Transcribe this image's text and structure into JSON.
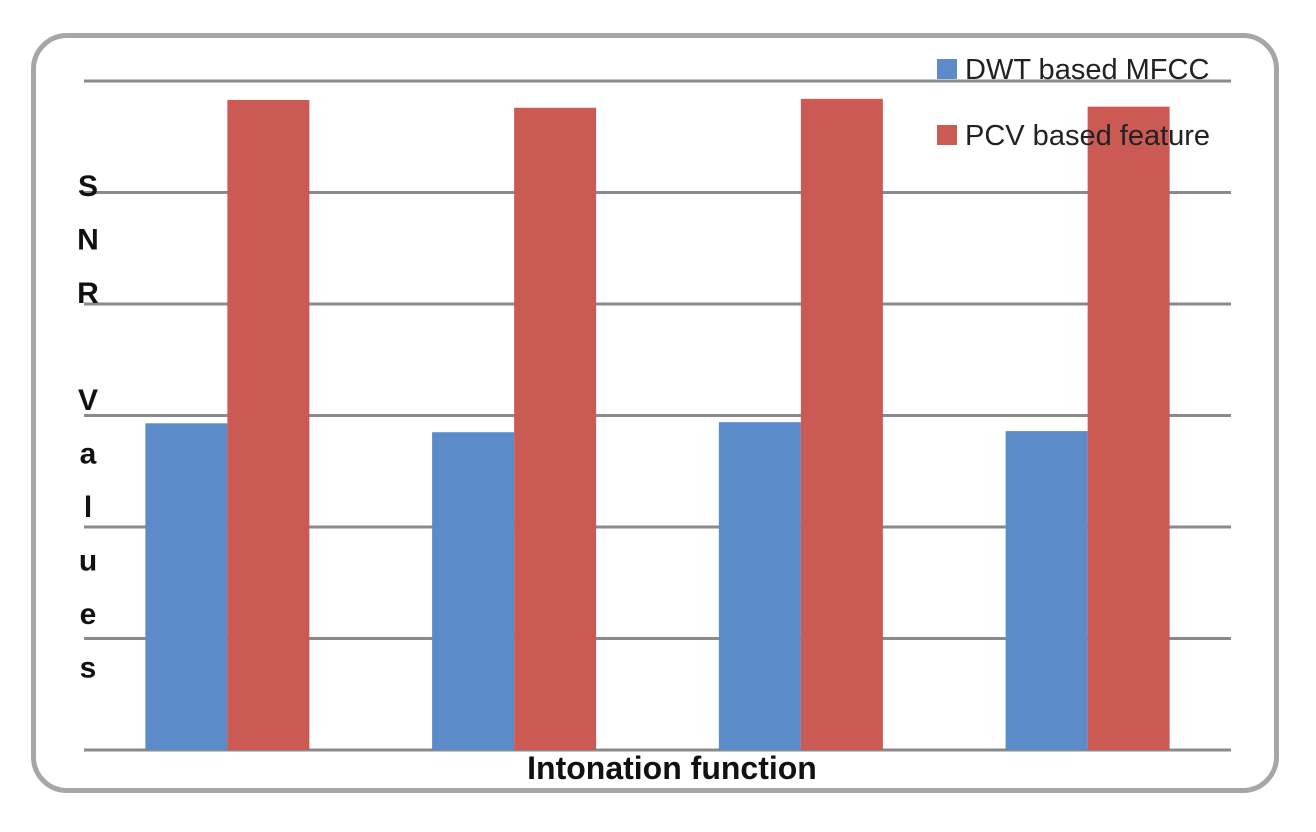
{
  "chart_data": {
    "type": "bar",
    "title": "",
    "xlabel": "Intonation function",
    "ylabel": "SNR Values",
    "ylabel_lines": [
      "S",
      "N",
      "R",
      "",
      "V",
      "a",
      "l",
      "u",
      "e",
      "s"
    ],
    "categories": [
      "",
      "",
      "",
      ""
    ],
    "series": [
      {
        "name": "DWT based MFCC",
        "color": "#5b8bc8",
        "values": [
          2.93,
          2.85,
          2.94,
          2.86
        ]
      },
      {
        "name": "PCV based feature",
        "color": "#cb5a55",
        "values": [
          5.83,
          5.76,
          5.84,
          5.77
        ]
      }
    ],
    "ylim": [
      0,
      6
    ],
    "grid": true,
    "gridline_count": 7,
    "legend_position": "top-right"
  }
}
